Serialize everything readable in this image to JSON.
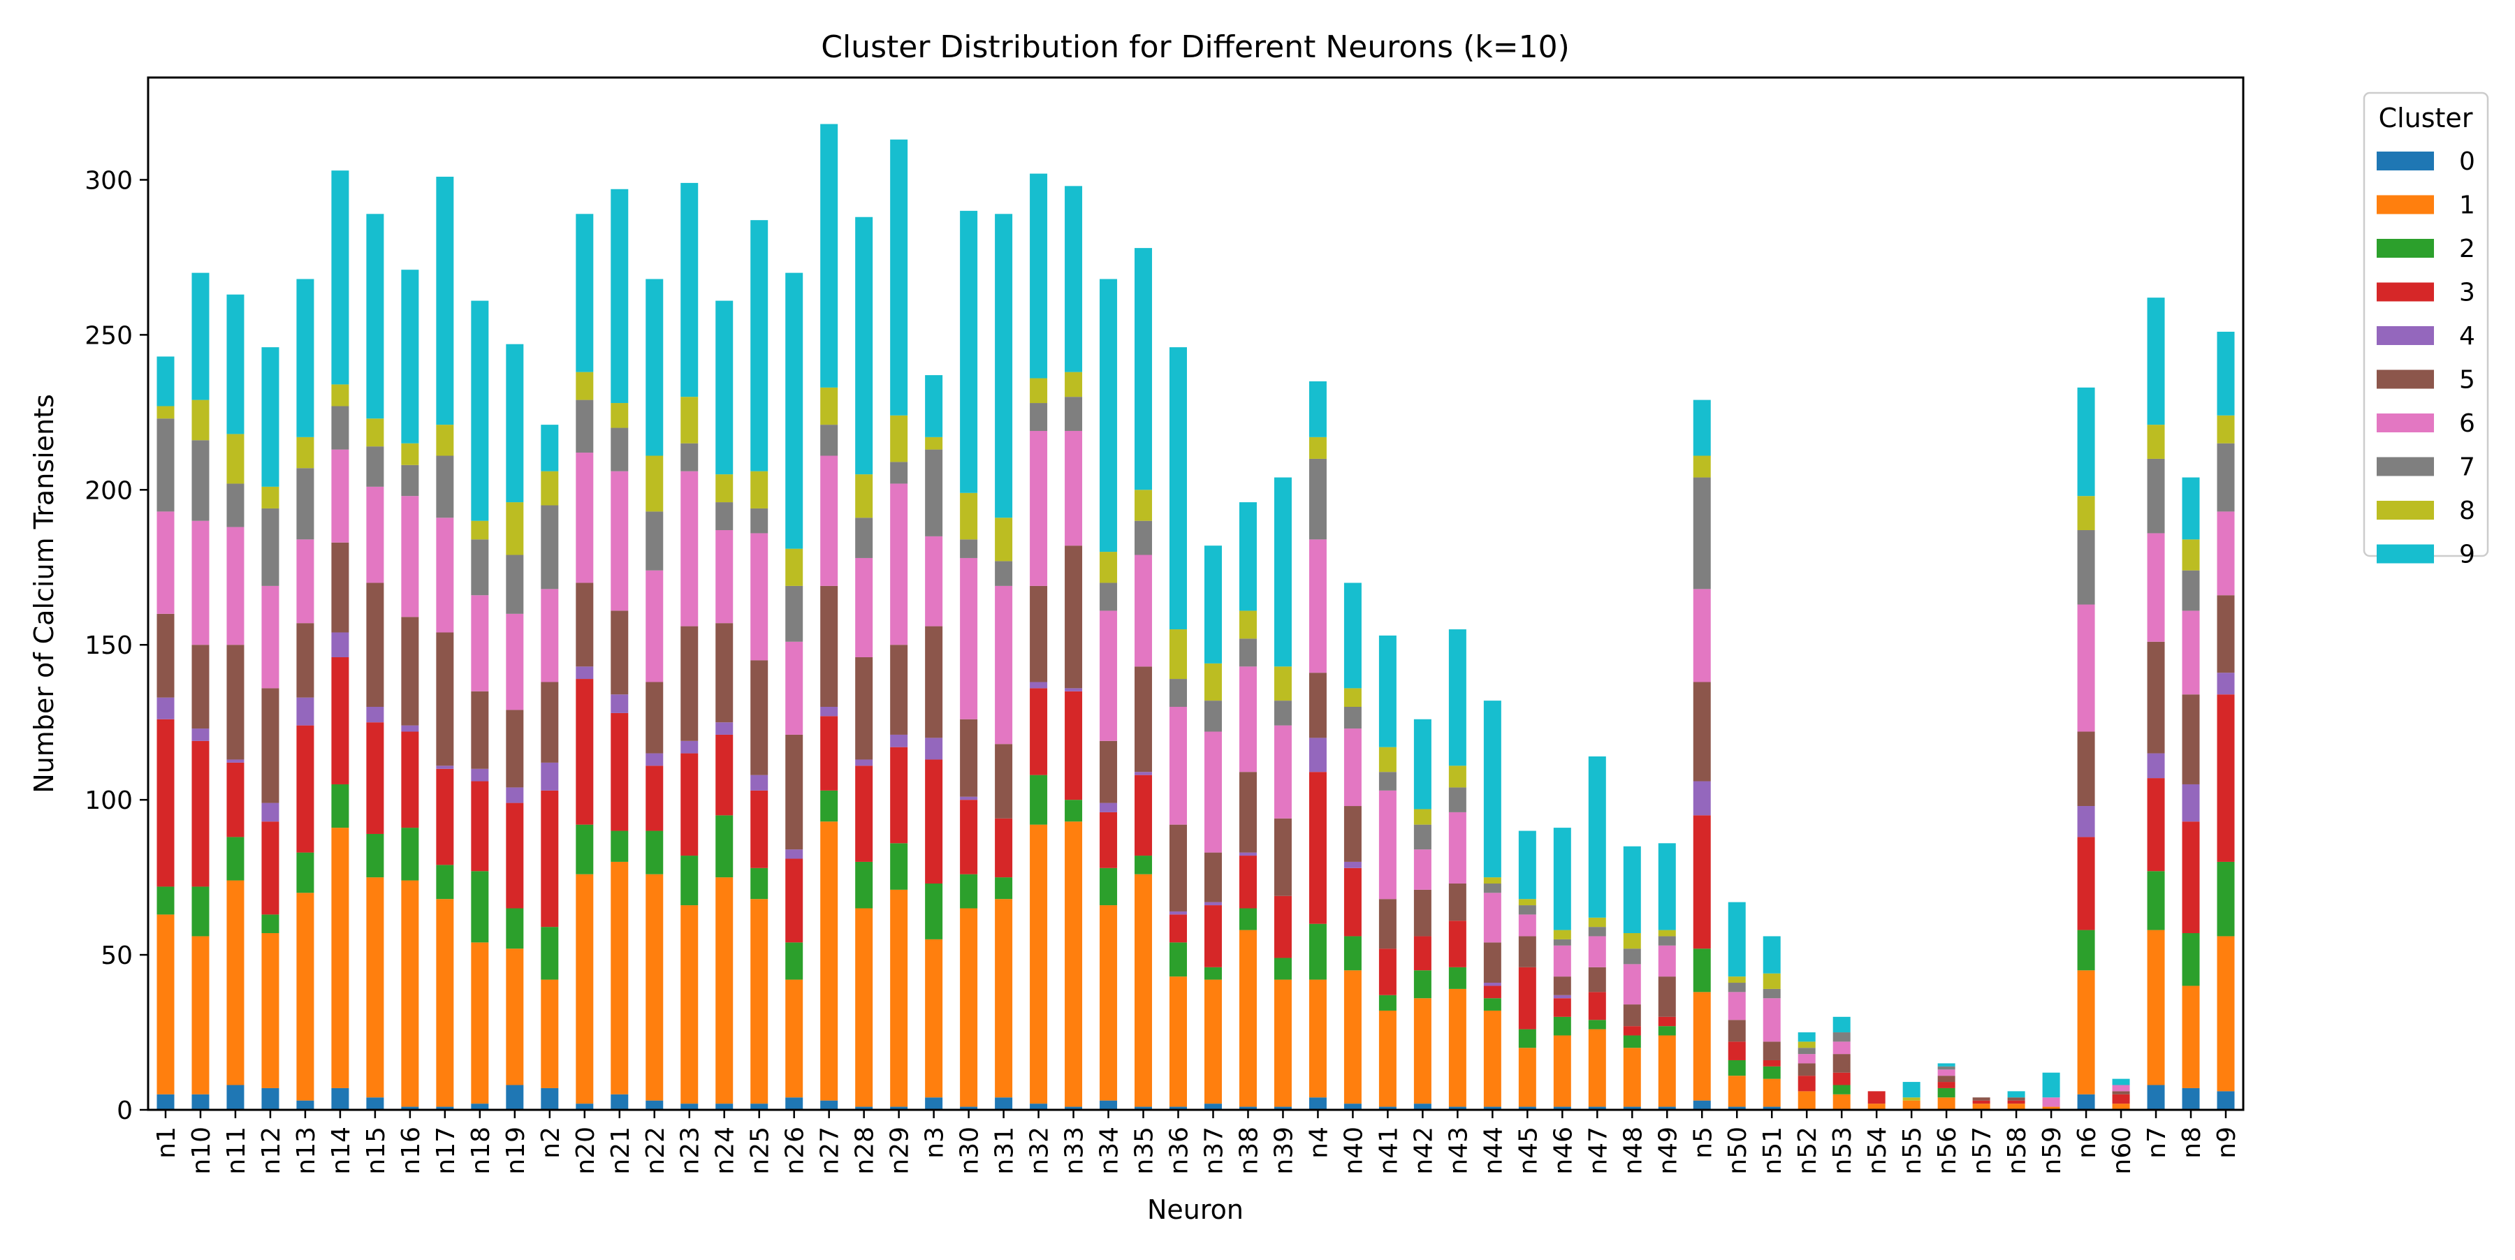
{
  "chart_data": {
    "type": "bar",
    "stacked": true,
    "title": "Cluster Distribution for Different Neurons (k=10)",
    "xlabel": "Neuron",
    "ylabel": "Number of Calcium Transients",
    "ylim": [
      0,
      333
    ],
    "yticks": [
      0,
      50,
      100,
      150,
      200,
      250,
      300
    ],
    "grid": false,
    "legend": {
      "title": "Cluster",
      "placement": "outside-top-right"
    },
    "categories": [
      "n1",
      "n10",
      "n11",
      "n12",
      "n13",
      "n14",
      "n15",
      "n16",
      "n17",
      "n18",
      "n19",
      "n2",
      "n20",
      "n21",
      "n22",
      "n23",
      "n24",
      "n25",
      "n26",
      "n27",
      "n28",
      "n29",
      "n3",
      "n30",
      "n31",
      "n32",
      "n33",
      "n34",
      "n35",
      "n36",
      "n37",
      "n38",
      "n39",
      "n4",
      "n40",
      "n41",
      "n42",
      "n43",
      "n44",
      "n45",
      "n46",
      "n47",
      "n48",
      "n49",
      "n5",
      "n50",
      "n51",
      "n52",
      "n53",
      "n54",
      "n55",
      "n56",
      "n57",
      "n58",
      "n59",
      "n6",
      "n60",
      "n7",
      "n8",
      "n9"
    ],
    "series": [
      {
        "name": "0",
        "color": "#1f77b4",
        "values": [
          5,
          5,
          8,
          7,
          3,
          7,
          4,
          1,
          1,
          2,
          8,
          7,
          2,
          5,
          3,
          2,
          2,
          2,
          4,
          3,
          1,
          1,
          4,
          1,
          4,
          2,
          1,
          3,
          1,
          1,
          2,
          1,
          1,
          4,
          2,
          1,
          2,
          1,
          1,
          1,
          1,
          1,
          1,
          1,
          3,
          1,
          1,
          0,
          0,
          0,
          0,
          0,
          0,
          0,
          0,
          5,
          0,
          8,
          7,
          6
        ]
      },
      {
        "name": "1",
        "color": "#ff7f0e",
        "values": [
          58,
          51,
          66,
          50,
          67,
          84,
          71,
          73,
          67,
          52,
          44,
          35,
          74,
          75,
          73,
          64,
          73,
          66,
          38,
          90,
          64,
          70,
          51,
          64,
          64,
          90,
          92,
          63,
          75,
          42,
          40,
          57,
          41,
          38,
          43,
          31,
          34,
          38,
          31,
          19,
          23,
          25,
          19,
          23,
          35,
          10,
          9,
          6,
          5,
          2,
          3,
          4,
          2,
          2,
          1,
          40,
          2,
          50,
          33,
          50
        ]
      },
      {
        "name": "2",
        "color": "#2ca02c",
        "values": [
          9,
          16,
          14,
          6,
          13,
          14,
          14,
          17,
          11,
          23,
          13,
          17,
          16,
          10,
          14,
          16,
          20,
          10,
          12,
          10,
          15,
          15,
          18,
          11,
          7,
          16,
          7,
          12,
          6,
          11,
          4,
          7,
          7,
          18,
          11,
          5,
          9,
          7,
          4,
          6,
          6,
          3,
          4,
          3,
          14,
          5,
          4,
          0,
          3,
          0,
          0,
          3,
          0,
          0,
          0,
          13,
          0,
          19,
          17,
          24
        ]
      },
      {
        "name": "3",
        "color": "#d62728",
        "values": [
          54,
          47,
          24,
          30,
          41,
          41,
          36,
          31,
          31,
          29,
          34,
          44,
          47,
          38,
          21,
          33,
          26,
          25,
          27,
          24,
          31,
          31,
          40,
          24,
          19,
          28,
          35,
          18,
          26,
          9,
          20,
          17,
          20,
          49,
          22,
          15,
          11,
          15,
          4,
          20,
          6,
          9,
          3,
          3,
          43,
          6,
          2,
          5,
          4,
          4,
          0,
          2,
          1,
          1,
          0,
          30,
          3,
          30,
          36,
          54
        ]
      },
      {
        "name": "4",
        "color": "#9467bd",
        "values": [
          7,
          4,
          1,
          6,
          9,
          8,
          5,
          2,
          1,
          4,
          5,
          9,
          4,
          6,
          4,
          4,
          4,
          5,
          3,
          3,
          2,
          4,
          7,
          1,
          0,
          2,
          1,
          3,
          1,
          1,
          1,
          1,
          0,
          11,
          2,
          0,
          0,
          0,
          1,
          0,
          1,
          0,
          0,
          0,
          11,
          0,
          0,
          0,
          0,
          0,
          0,
          0,
          0,
          0,
          0,
          10,
          0,
          8,
          12,
          7
        ]
      },
      {
        "name": "5",
        "color": "#8c564b",
        "values": [
          27,
          27,
          37,
          37,
          24,
          29,
          40,
          35,
          43,
          25,
          25,
          26,
          27,
          27,
          23,
          37,
          32,
          37,
          37,
          39,
          33,
          29,
          36,
          25,
          24,
          31,
          46,
          20,
          34,
          28,
          16,
          26,
          25,
          21,
          18,
          16,
          15,
          12,
          13,
          10,
          6,
          8,
          7,
          13,
          32,
          7,
          6,
          4,
          6,
          0,
          0,
          2,
          1,
          1,
          0,
          24,
          1,
          36,
          29,
          25
        ]
      },
      {
        "name": "6",
        "color": "#e377c2",
        "values": [
          33,
          40,
          38,
          33,
          27,
          30,
          31,
          39,
          37,
          31,
          31,
          30,
          42,
          45,
          36,
          50,
          30,
          41,
          30,
          42,
          32,
          52,
          29,
          52,
          51,
          50,
          37,
          42,
          36,
          38,
          39,
          34,
          30,
          43,
          25,
          35,
          13,
          23,
          16,
          7,
          10,
          10,
          13,
          10,
          30,
          9,
          14,
          3,
          4,
          0,
          0,
          2,
          0,
          0,
          3,
          41,
          2,
          35,
          27,
          27
        ]
      },
      {
        "name": "7",
        "color": "#7f7f7f",
        "values": [
          30,
          26,
          14,
          25,
          23,
          14,
          13,
          10,
          20,
          18,
          19,
          27,
          17,
          14,
          19,
          9,
          9,
          8,
          18,
          10,
          13,
          7,
          28,
          6,
          8,
          9,
          11,
          9,
          11,
          9,
          10,
          9,
          8,
          26,
          7,
          6,
          8,
          8,
          3,
          3,
          2,
          3,
          5,
          3,
          36,
          3,
          3,
          2,
          3,
          0,
          0,
          1,
          0,
          0,
          0,
          24,
          0,
          24,
          13,
          22
        ]
      },
      {
        "name": "8",
        "color": "#bcbd22",
        "values": [
          4,
          13,
          16,
          7,
          10,
          7,
          9,
          7,
          10,
          6,
          17,
          11,
          9,
          8,
          18,
          15,
          9,
          12,
          12,
          12,
          14,
          15,
          4,
          15,
          14,
          8,
          8,
          10,
          10,
          16,
          12,
          9,
          11,
          7,
          6,
          8,
          5,
          7,
          2,
          2,
          3,
          3,
          5,
          2,
          7,
          2,
          5,
          2,
          0,
          0,
          1,
          0,
          0,
          0,
          0,
          11,
          0,
          11,
          10,
          9
        ]
      },
      {
        "name": "9",
        "color": "#17becf",
        "values": [
          16,
          41,
          45,
          45,
          51,
          69,
          66,
          56,
          80,
          71,
          51,
          15,
          51,
          69,
          57,
          69,
          56,
          81,
          89,
          85,
          83,
          89,
          20,
          91,
          98,
          66,
          60,
          88,
          78,
          91,
          38,
          35,
          61,
          18,
          34,
          36,
          29,
          44,
          57,
          22,
          33,
          52,
          28,
          28,
          18,
          24,
          12,
          3,
          5,
          0,
          5,
          1,
          0,
          2,
          8,
          35,
          2,
          41,
          20,
          27
        ]
      }
    ]
  }
}
